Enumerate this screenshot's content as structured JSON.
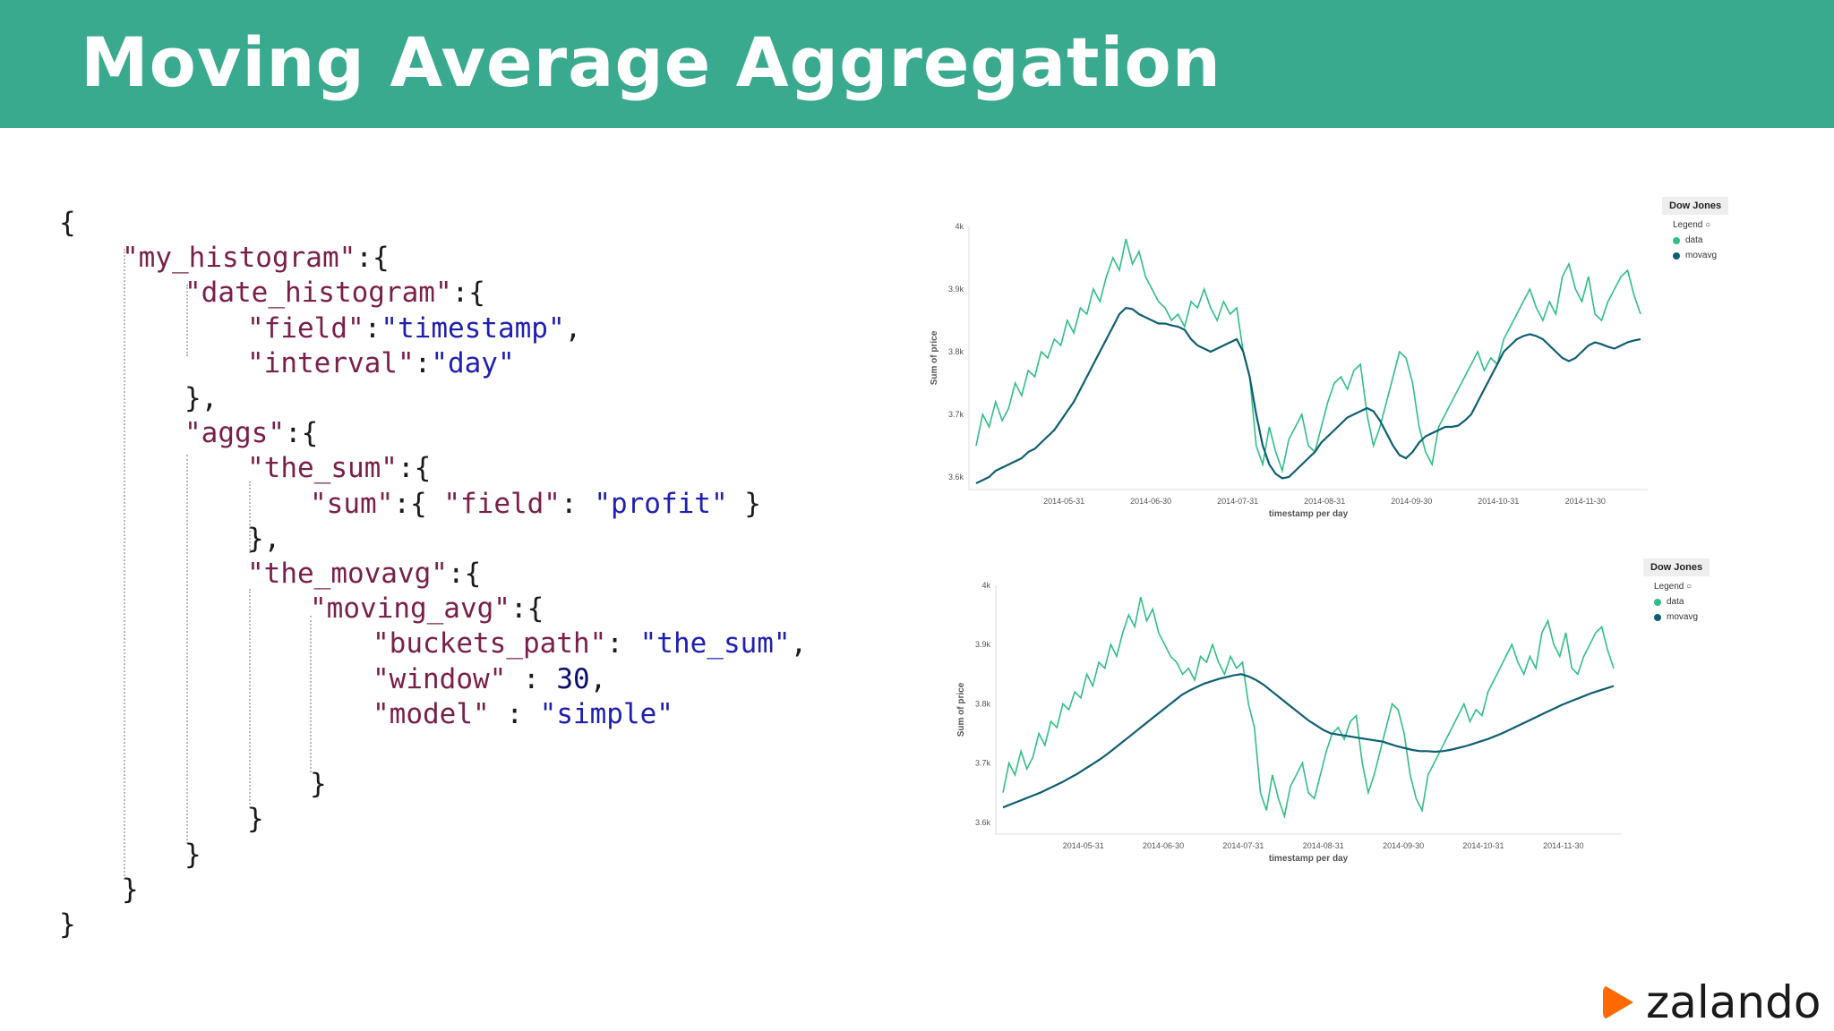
{
  "header": {
    "title": "Moving Average Aggregation",
    "color": "#3aaa8f"
  },
  "code": [
    [
      {
        "t": "p",
        "v": "{"
      }
    ],
    [
      {
        "t": "k",
        "v": "\"my_histogram\""
      },
      {
        "t": "p",
        "v": ":{"
      }
    ],
    [
      {
        "t": "k",
        "v": "\"date_histogram\""
      },
      {
        "t": "p",
        "v": ":{"
      }
    ],
    [
      {
        "t": "k",
        "v": "\"field\""
      },
      {
        "t": "p",
        "v": ":"
      },
      {
        "t": "s",
        "v": "\"timestamp\""
      },
      {
        "t": "p",
        "v": ","
      }
    ],
    [
      {
        "t": "k",
        "v": "\"interval\""
      },
      {
        "t": "p",
        "v": ":"
      },
      {
        "t": "s",
        "v": "\"day\""
      }
    ],
    [
      {
        "t": "p",
        "v": "},"
      }
    ],
    [
      {
        "t": "k",
        "v": "\"aggs\""
      },
      {
        "t": "p",
        "v": ":{"
      }
    ],
    [
      {
        "t": "k",
        "v": "\"the_sum\""
      },
      {
        "t": "p",
        "v": ":{"
      }
    ],
    [
      {
        "t": "k",
        "v": "\"sum\""
      },
      {
        "t": "p",
        "v": ":{ "
      },
      {
        "t": "k",
        "v": "\"field\""
      },
      {
        "t": "p",
        "v": ": "
      },
      {
        "t": "s",
        "v": "\"profit\""
      },
      {
        "t": "p",
        "v": " }"
      }
    ],
    [
      {
        "t": "p",
        "v": "},"
      }
    ],
    [
      {
        "t": "k",
        "v": "\"the_movavg\""
      },
      {
        "t": "p",
        "v": ":{"
      }
    ],
    [
      {
        "t": "k",
        "v": "\"moving_avg\""
      },
      {
        "t": "p",
        "v": ":{"
      }
    ],
    [
      {
        "t": "k",
        "v": "\"buckets_path\""
      },
      {
        "t": "p",
        "v": ": "
      },
      {
        "t": "s",
        "v": "\"the_sum\""
      },
      {
        "t": "p",
        "v": ","
      }
    ],
    [
      {
        "t": "k",
        "v": "\"window\""
      },
      {
        "t": "p",
        "v": " : "
      },
      {
        "t": "n",
        "v": "30"
      },
      {
        "t": "p",
        "v": ","
      }
    ],
    [
      {
        "t": "k",
        "v": "\"model\""
      },
      {
        "t": "p",
        "v": " : "
      },
      {
        "t": "s",
        "v": "\"simple\""
      }
    ],
    [
      {
        "t": "p",
        "v": ""
      }
    ],
    [
      {
        "t": "p",
        "v": "}"
      }
    ],
    [
      {
        "t": "p",
        "v": "}"
      }
    ],
    [
      {
        "t": "p",
        "v": "}"
      }
    ],
    [
      {
        "t": "p",
        "v": "}"
      }
    ],
    [
      {
        "t": "p",
        "v": "}"
      }
    ]
  ],
  "chart_data": [
    {
      "type": "line",
      "title": "Dow Jones",
      "legend_title": "Legend",
      "xlabel": "timestamp per day",
      "ylabel": "Sum of price",
      "x_ticks": [
        "2014-05-31",
        "2014-06-30",
        "2014-07-31",
        "2014-08-31",
        "2014-09-30",
        "2014-10-31",
        "2014-11-30"
      ],
      "y_ticks": [
        "3.6k",
        "3.7k",
        "3.8k",
        "3.9k",
        "4k"
      ],
      "ylim": [
        3580,
        4000
      ],
      "colors": {
        "data": "#2fbf86",
        "movavg": "#0e5e73"
      },
      "series": [
        {
          "name": "data",
          "values": [
            3650,
            3700,
            3680,
            3720,
            3690,
            3710,
            3750,
            3730,
            3770,
            3760,
            3800,
            3790,
            3820,
            3810,
            3850,
            3830,
            3870,
            3860,
            3900,
            3880,
            3920,
            3950,
            3930,
            3980,
            3940,
            3960,
            3920,
            3900,
            3880,
            3870,
            3850,
            3860,
            3840,
            3880,
            3870,
            3900,
            3870,
            3850,
            3880,
            3860,
            3870,
            3800,
            3760,
            3650,
            3620,
            3680,
            3640,
            3610,
            3660,
            3680,
            3700,
            3650,
            3640,
            3680,
            3720,
            3750,
            3760,
            3740,
            3770,
            3780,
            3700,
            3650,
            3680,
            3720,
            3760,
            3800,
            3790,
            3750,
            3680,
            3640,
            3620,
            3680,
            3700,
            3720,
            3740,
            3760,
            3780,
            3800,
            3770,
            3790,
            3780,
            3820,
            3840,
            3860,
            3880,
            3900,
            3870,
            3850,
            3880,
            3860,
            3920,
            3940,
            3900,
            3880,
            3920,
            3860,
            3850,
            3880,
            3900,
            3920,
            3930,
            3890,
            3860
          ]
        },
        {
          "name": "movavg",
          "values": [
            3590,
            3595,
            3600,
            3610,
            3615,
            3620,
            3625,
            3630,
            3640,
            3645,
            3655,
            3665,
            3675,
            3690,
            3705,
            3720,
            3740,
            3760,
            3780,
            3800,
            3820,
            3840,
            3860,
            3870,
            3868,
            3860,
            3855,
            3850,
            3845,
            3845,
            3842,
            3840,
            3835,
            3820,
            3810,
            3805,
            3800,
            3805,
            3810,
            3815,
            3820,
            3800,
            3760,
            3700,
            3650,
            3620,
            3605,
            3598,
            3600,
            3610,
            3620,
            3630,
            3640,
            3655,
            3665,
            3675,
            3685,
            3695,
            3700,
            3705,
            3710,
            3705,
            3690,
            3670,
            3650,
            3635,
            3630,
            3640,
            3655,
            3665,
            3670,
            3675,
            3680,
            3680,
            3682,
            3690,
            3700,
            3720,
            3740,
            3760,
            3780,
            3800,
            3810,
            3820,
            3825,
            3828,
            3825,
            3820,
            3810,
            3800,
            3790,
            3785,
            3790,
            3800,
            3810,
            3815,
            3812,
            3808,
            3805,
            3810,
            3815,
            3818,
            3820
          ]
        }
      ]
    },
    {
      "type": "line",
      "title": "Dow Jones",
      "legend_title": "Legend",
      "xlabel": "timestamp per day",
      "ylabel": "Sum of price",
      "x_ticks": [
        "2014-05-31",
        "2014-06-30",
        "2014-07-31",
        "2014-08-31",
        "2014-09-30",
        "2014-10-31",
        "2014-11-30"
      ],
      "y_ticks": [
        "3.6k",
        "3.7k",
        "3.8k",
        "3.9k",
        "4k"
      ],
      "ylim": [
        3580,
        4000
      ],
      "colors": {
        "data": "#2fbf86",
        "movavg": "#0e5e73"
      },
      "series": [
        {
          "name": "data",
          "values": [
            3650,
            3700,
            3680,
            3720,
            3690,
            3710,
            3750,
            3730,
            3770,
            3760,
            3800,
            3790,
            3820,
            3810,
            3850,
            3830,
            3870,
            3860,
            3900,
            3880,
            3920,
            3950,
            3930,
            3980,
            3940,
            3960,
            3920,
            3900,
            3880,
            3870,
            3850,
            3860,
            3840,
            3880,
            3870,
            3900,
            3870,
            3850,
            3880,
            3860,
            3870,
            3800,
            3760,
            3650,
            3620,
            3680,
            3640,
            3610,
            3660,
            3680,
            3700,
            3650,
            3640,
            3680,
            3720,
            3750,
            3760,
            3740,
            3770,
            3780,
            3700,
            3650,
            3680,
            3720,
            3760,
            3800,
            3790,
            3750,
            3680,
            3640,
            3620,
            3680,
            3700,
            3720,
            3740,
            3760,
            3780,
            3800,
            3770,
            3790,
            3780,
            3820,
            3840,
            3860,
            3880,
            3900,
            3870,
            3850,
            3880,
            3860,
            3920,
            3940,
            3900,
            3880,
            3920,
            3860,
            3850,
            3880,
            3900,
            3920,
            3930,
            3890,
            3860
          ]
        },
        {
          "name": "movavg",
          "values": [
            3625,
            3630,
            3635,
            3640,
            3645,
            3650,
            3656,
            3662,
            3668,
            3675,
            3682,
            3690,
            3698,
            3706,
            3715,
            3725,
            3735,
            3745,
            3755,
            3765,
            3775,
            3785,
            3795,
            3805,
            3815,
            3822,
            3828,
            3834,
            3838,
            3842,
            3845,
            3848,
            3850,
            3846,
            3840,
            3832,
            3822,
            3812,
            3802,
            3792,
            3782,
            3772,
            3764,
            3756,
            3750,
            3748,
            3746,
            3744,
            3742,
            3740,
            3738,
            3736,
            3732,
            3728,
            3725,
            3722,
            3720,
            3720,
            3719,
            3720,
            3722,
            3725,
            3728,
            3732,
            3736,
            3740,
            3745,
            3750,
            3756,
            3762,
            3768,
            3774,
            3780,
            3786,
            3792,
            3798,
            3803,
            3808,
            3813,
            3818,
            3822,
            3826,
            3830
          ]
        }
      ]
    }
  ],
  "logo": {
    "text": "zalando",
    "color": "#ff6900"
  }
}
